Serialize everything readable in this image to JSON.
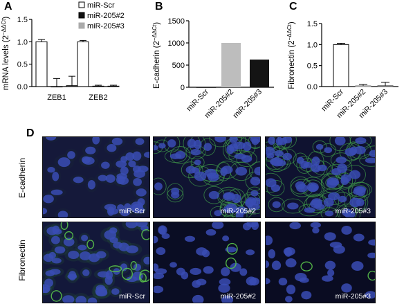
{
  "panels": {
    "A": "A",
    "B": "B",
    "C": "C",
    "D": "D"
  },
  "colors": {
    "scr": "#ffffff",
    "m2": "#111111",
    "m3": "#aaaaaa",
    "b_m2": "#bdbdbd",
    "b_m3": "#141414"
  },
  "chart_data": [
    {
      "id": "A",
      "type": "bar",
      "ylabel": "mRNA levels (2^−ΔΔCt)",
      "categories": [
        "ZEB1",
        "ZEB2"
      ],
      "ylim": [
        0,
        1.5
      ],
      "yticks": [
        "0.0",
        "0.5",
        "1.0",
        "1.5"
      ],
      "legend_position": "top-right",
      "series": [
        {
          "name": "miR-Scr",
          "values": [
            1.0,
            1.0
          ],
          "err": [
            0.05,
            0.03
          ]
        },
        {
          "name": "miR-205#2",
          "values": [
            0.0,
            0.01
          ],
          "err": [
            0.18,
            0.02
          ]
        },
        {
          "name": "miR-205#3",
          "values": [
            0.02,
            0.01
          ],
          "err": [
            0.21,
            0.02
          ]
        }
      ]
    },
    {
      "id": "B",
      "type": "bar",
      "ylabel": "E-cadherin (2^−ΔΔCt)",
      "categories": [
        "miR-Scr",
        "miR-205#2",
        "miR-205#3"
      ],
      "values": [
        1,
        1000,
        625
      ],
      "ylim": [
        0,
        1500
      ],
      "yticks": [
        "0",
        "500",
        "1000",
        "1500"
      ]
    },
    {
      "id": "C",
      "type": "bar",
      "ylabel": "Fibronectin (2^−ΔΔCt)",
      "categories": [
        "miR-Scr",
        "miR-205#2",
        "miR-205#3"
      ],
      "values": [
        1.0,
        0.02,
        0.02
      ],
      "err": [
        0.03,
        0.03,
        0.08
      ],
      "ylim": [
        0,
        1.5
      ],
      "yticks": [
        "0.0",
        "0.5",
        "1.0",
        "1.5"
      ]
    }
  ],
  "micrographs": {
    "rows": [
      "E-cadherin",
      "Fibronectin"
    ],
    "labels": [
      "miR-Scr",
      "miR-205#2",
      "miR-205#3"
    ]
  }
}
